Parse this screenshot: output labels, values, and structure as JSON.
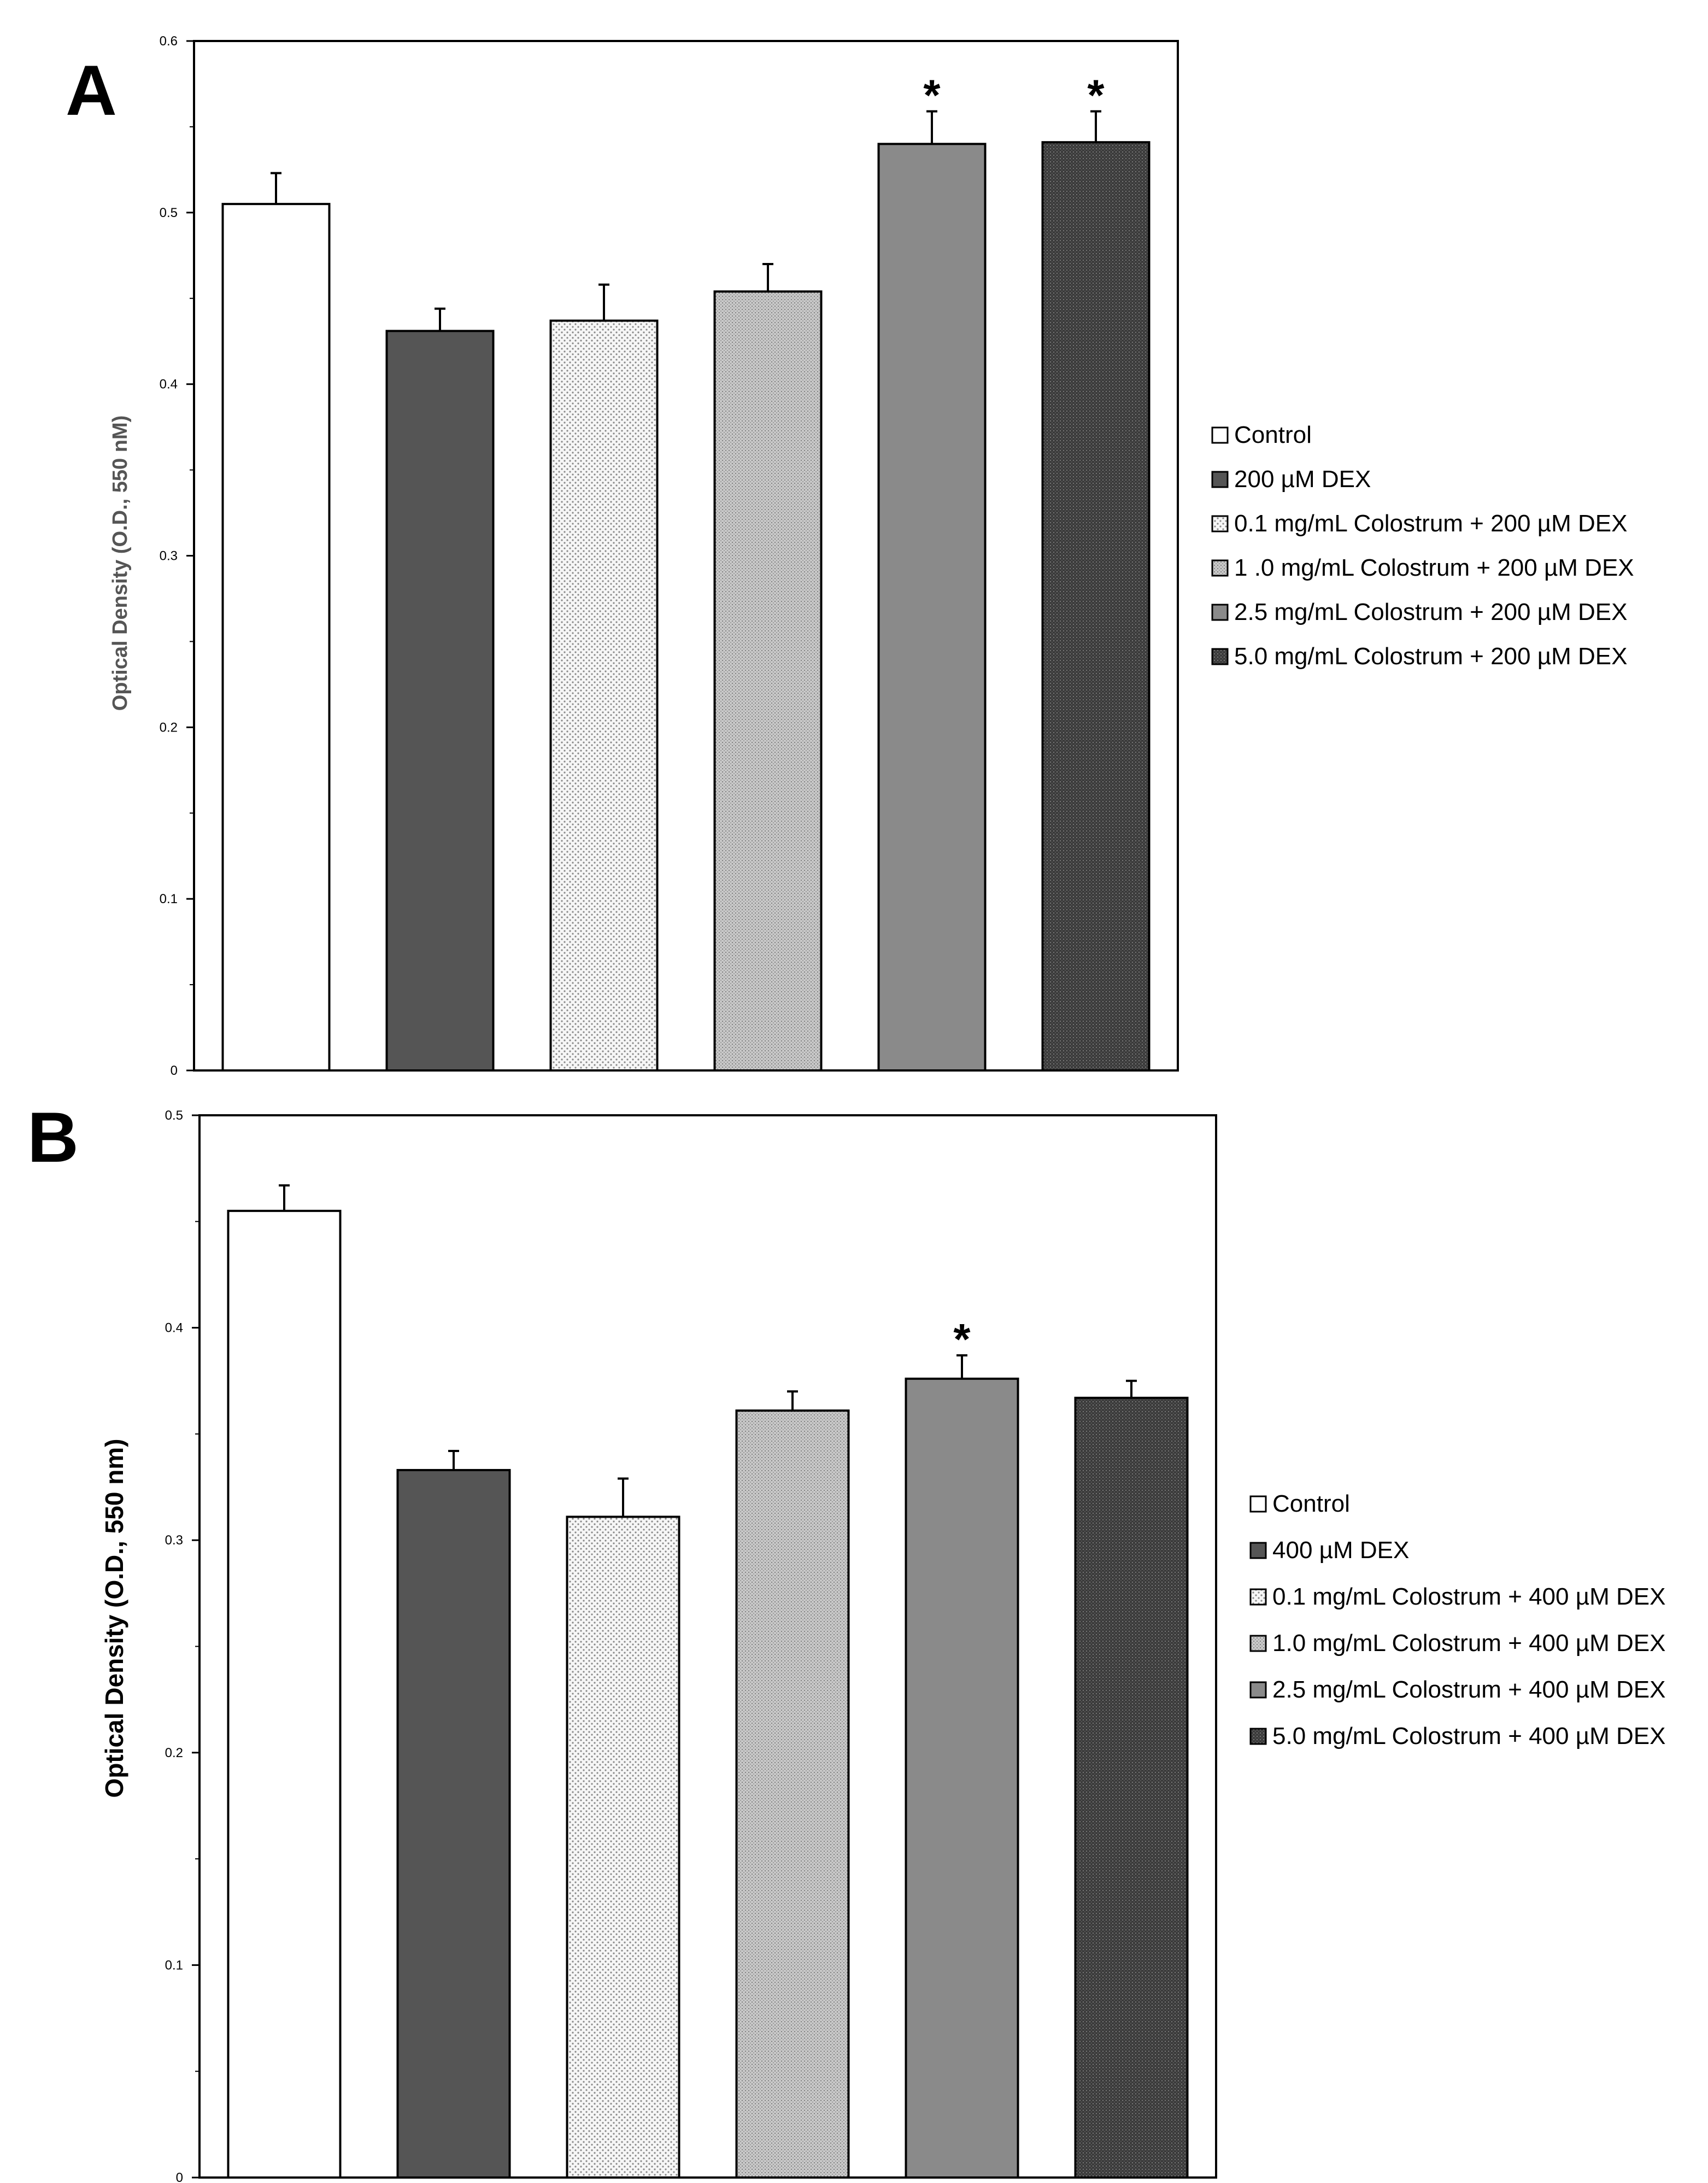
{
  "chart_data": [
    {
      "type": "bar",
      "panel": "A",
      "ylabel": "Optical Density (O.D., 550 nM)",
      "ylim": [
        0,
        0.6
      ],
      "yticks": [
        "0",
        "0.1",
        "0.2",
        "0.3",
        "0.4",
        "0.5",
        "0.6"
      ],
      "categories": [
        "Control",
        "200 µM DEX",
        "0.1 mg/mL Colostrum + 200 µM DEX",
        "1 .0 mg/mL Colostrum + 200 µM DEX",
        "2.5 mg/mL Colostrum + 200 µM DEX",
        "5.0 mg/mL Colostrum + 200 µM DEX"
      ],
      "values": [
        0.505,
        0.431,
        0.437,
        0.454,
        0.54,
        0.541
      ],
      "errors": [
        0.018,
        0.013,
        0.021,
        0.016,
        0.019,
        0.018
      ],
      "significance": [
        "",
        "",
        "",
        "",
        "*",
        "*"
      ],
      "fills": [
        "#ffffff",
        "#555555",
        "#eeeeee",
        "#bbbbbb",
        "#888888",
        "#333333"
      ],
      "grid": false,
      "legend_position": "right"
    },
    {
      "type": "bar",
      "panel": "B",
      "ylabel": "Optical Density (O.D., 550 nm)",
      "ylim": [
        0,
        0.5
      ],
      "yticks": [
        "0",
        "0.1",
        "0.2",
        "0.3",
        "0.4",
        "0.5"
      ],
      "categories": [
        "Control",
        "400 µM DEX",
        "0.1 mg/mL Colostrum + 400 µM DEX",
        "1.0 mg/mL Colostrum + 400 µM DEX",
        "2.5 mg/mL Colostrum + 400 µM DEX",
        "5.0 mg/mL Colostrum + 400 µM DEX"
      ],
      "values": [
        0.455,
        0.333,
        0.311,
        0.361,
        0.376,
        0.367
      ],
      "errors": [
        0.012,
        0.009,
        0.018,
        0.009,
        0.011,
        0.008
      ],
      "significance": [
        "",
        "",
        "",
        "",
        "*",
        ""
      ],
      "fills": [
        "#ffffff",
        "#555555",
        "#eeeeee",
        "#bbbbbb",
        "#888888",
        "#333333"
      ],
      "grid": false,
      "legend_position": "right"
    }
  ]
}
